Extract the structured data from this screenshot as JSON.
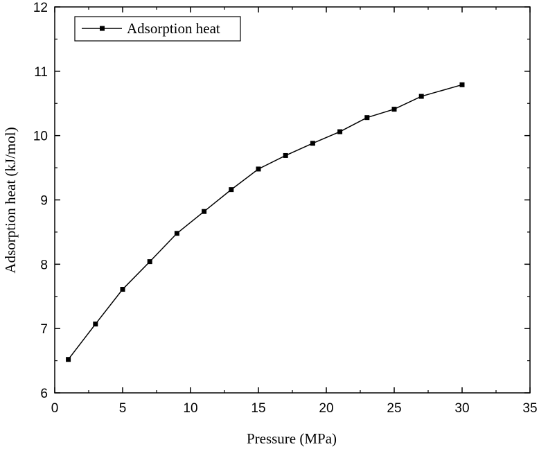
{
  "chart_data": {
    "type": "line",
    "title": "",
    "xlabel": "Pressure (MPa)",
    "ylabel": "Adsorption heat (kJ/mol)",
    "xlim": [
      0,
      35
    ],
    "ylim": [
      6,
      12
    ],
    "xticks": [
      0,
      5,
      10,
      15,
      20,
      25,
      30,
      35
    ],
    "yticks": [
      6,
      7,
      8,
      9,
      10,
      11,
      12
    ],
    "grid": false,
    "legend_position": "top-left",
    "marker": "square",
    "line_color": "#000000",
    "series": [
      {
        "name": "Adsorption heat",
        "x": [
          1,
          3,
          5,
          7,
          9,
          11,
          13,
          15,
          17,
          19,
          21,
          23,
          25,
          27,
          30
        ],
        "y": [
          6.52,
          7.07,
          7.61,
          8.04,
          8.48,
          8.82,
          9.16,
          9.48,
          9.69,
          9.88,
          10.06,
          10.28,
          10.41,
          10.61,
          10.79
        ]
      }
    ]
  }
}
